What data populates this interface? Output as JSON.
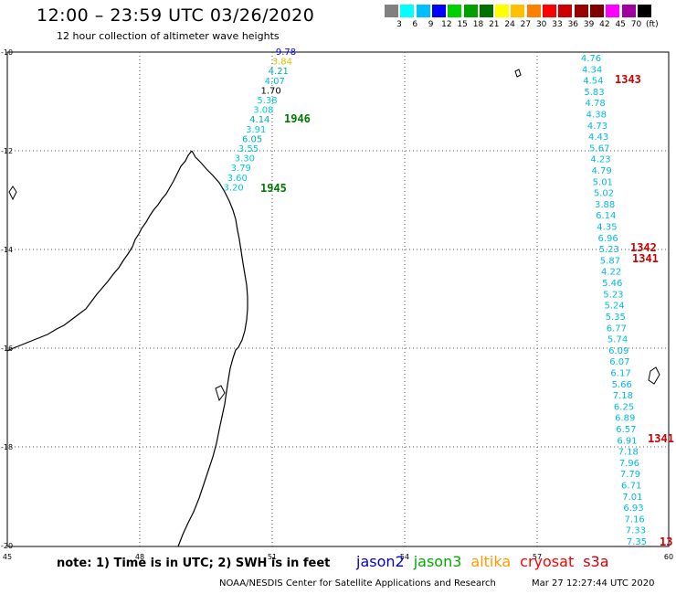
{
  "header": {
    "title": "12:00 – 23:59 UTC 03/26/2020",
    "subtitle": "12 hour collection of altimeter wave heights"
  },
  "scale": {
    "colors": [
      "#808080",
      "#00ffff",
      "#00bfff",
      "#0000ff",
      "#00d000",
      "#00a000",
      "#007000",
      "#ffff00",
      "#ffc000",
      "#ff8000",
      "#ff0000",
      "#cc0000",
      "#990000",
      "#800000",
      "#ff00ff",
      "#a000a0",
      "#000000"
    ],
    "labels": [
      "3",
      "6",
      "9",
      "12",
      "15",
      "18",
      "21",
      "24",
      "27",
      "30",
      "33",
      "36",
      "39",
      "42",
      "45",
      "70",
      "(ft)"
    ]
  },
  "axes": {
    "lon_labels": [
      "45",
      "48",
      "51",
      "54",
      "57",
      "60"
    ],
    "lat_labels": [
      "-10",
      "-12",
      "-14",
      "-16",
      "-18",
      "-20"
    ]
  },
  "track_west": {
    "labels": [
      "9.78",
      "3.84",
      "4.21",
      "4.07",
      "1.70",
      "5.38",
      "3.08",
      "4.14",
      "3.91",
      "6.05",
      "3.55",
      "3.30",
      "3.79",
      "3.60",
      "3.20"
    ],
    "colors": [
      "#0000ff",
      "#e0c000",
      "#00aaaa",
      "#00bbdd",
      "#000000",
      "#00ccdd",
      "#00ccdd",
      "#00aaaa",
      "#00ccdd",
      "#00aaaa",
      "#00ccdd",
      "#00ccdd",
      "#00ccdd",
      "#00ccdd",
      "#00ccdd"
    ]
  },
  "track_east": {
    "labels": [
      "4.76",
      "4.34",
      "4.54",
      "5.83",
      "4.78",
      "4.38",
      "4.73",
      "4.43",
      "5.67",
      "4.23",
      "4.79",
      "5.01",
      "5.02",
      "3.88",
      "6.14",
      "4.35",
      "6.96",
      "5.23",
      "5.87",
      "4.22",
      "5.46",
      "5.23",
      "5.24",
      "5.35",
      "6.77",
      "5.74",
      "6.09",
      "6.07",
      "6.17",
      "5.66",
      "7.18",
      "6.25",
      "6.89",
      "6.57",
      "6.91",
      "7.18",
      "7.96",
      "7.79",
      "6.71",
      "7.01",
      "6.93",
      "7.16",
      "7.33",
      "7.35"
    ]
  },
  "passes": [
    {
      "label": "1946",
      "color": "#007700"
    },
    {
      "label": "1945",
      "color": "#007700"
    },
    {
      "label": "1343",
      "color": "#cc0000"
    },
    {
      "label": "1342",
      "color": "#cc0000"
    },
    {
      "label": "1341",
      "color": "#cc0000"
    },
    {
      "label": "1341",
      "color": "#cc0000"
    },
    {
      "label": "13",
      "color": "#cc0000"
    }
  ],
  "footer": {
    "note": "note:  1) Time is in UTC;  2) SWH is in feet",
    "satellites": [
      {
        "name": "jason2",
        "color": "#0000cc"
      },
      {
        "name": "jason3",
        "color": "#00aa00"
      },
      {
        "name": "altika",
        "color": "#ff9900"
      },
      {
        "name": "cryosat",
        "color": "#ff0000"
      },
      {
        "name": "s3a",
        "color": "#cc0000"
      }
    ],
    "credit": "NOAA/NESDIS Center for Satellite Applications and Research",
    "timestamp": "Mar 27 12:27:44 UTC 2020"
  }
}
